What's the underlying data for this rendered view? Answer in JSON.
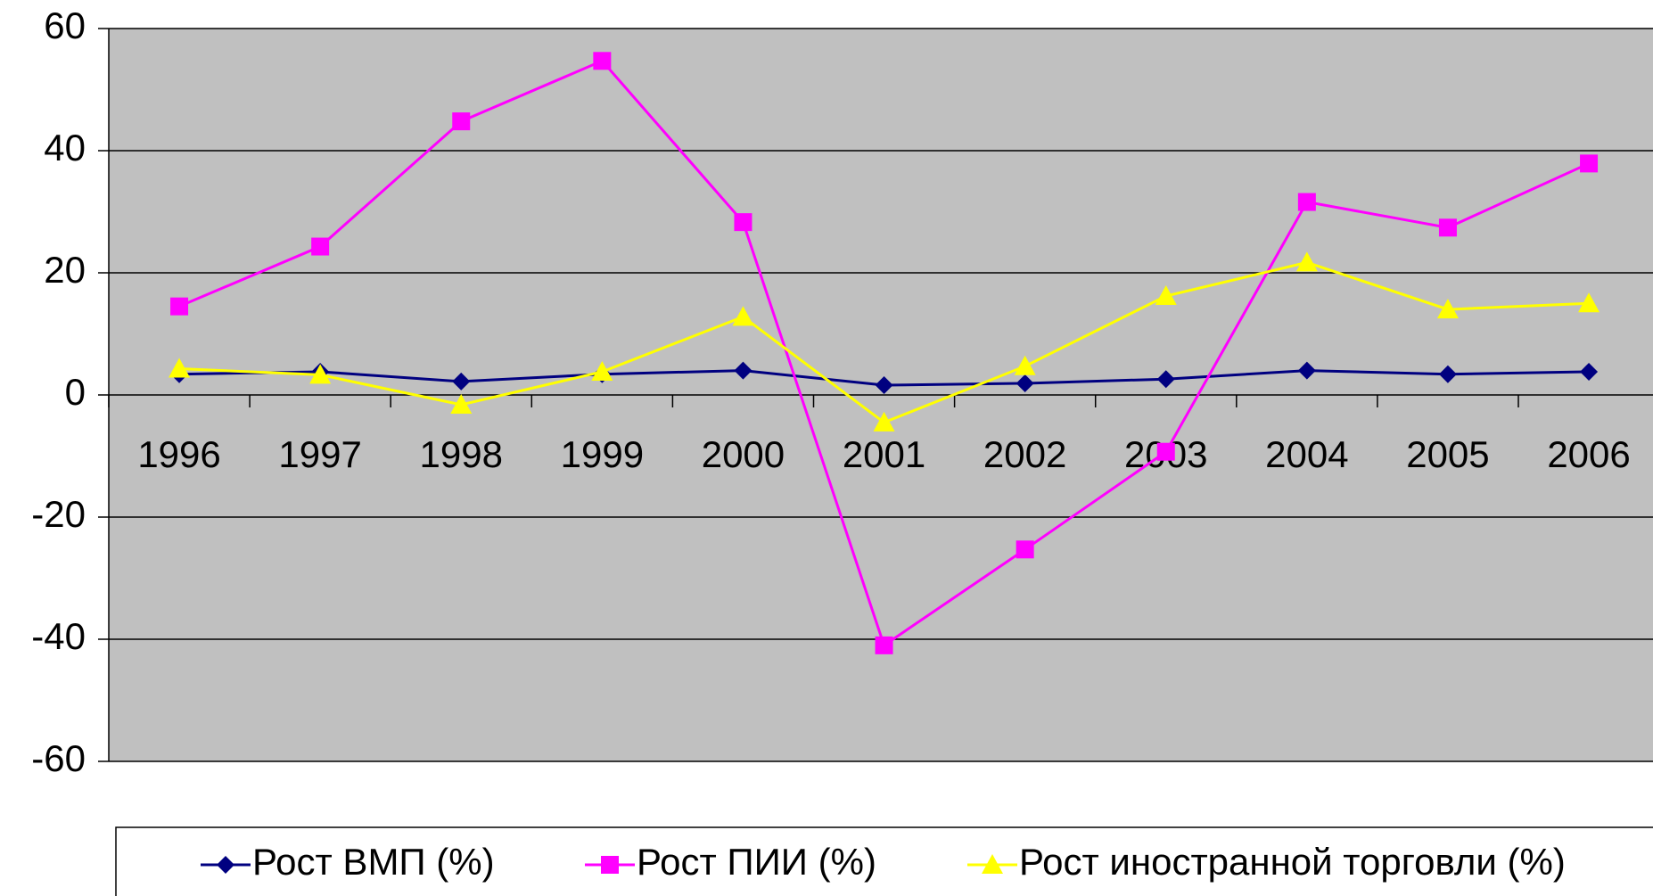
{
  "chart_data": {
    "type": "line",
    "categories": [
      "1996",
      "1997",
      "1998",
      "1999",
      "2000",
      "2001",
      "2002",
      "2003",
      "2004",
      "2005",
      "2006"
    ],
    "series": [
      {
        "name": "Рост ВМП (%)",
        "color": "#000080",
        "marker": "diamond",
        "values": [
          3.4,
          3.8,
          2.2,
          3.4,
          4.0,
          1.6,
          1.9,
          2.6,
          4.0,
          3.4,
          3.8
        ]
      },
      {
        "name": "Рост ПИИ (%)",
        "color": "#ff00ff",
        "marker": "square",
        "values": [
          14.5,
          24.3,
          44.8,
          54.7,
          28.3,
          -41.0,
          -25.3,
          -9.3,
          31.6,
          27.4,
          37.9
        ]
      },
      {
        "name": "Рост иностранной торговли (%)",
        "color": "#ffff00",
        "marker": "triangle",
        "values": [
          4.3,
          3.3,
          -1.6,
          3.8,
          12.8,
          -4.5,
          4.7,
          16.2,
          21.7,
          14.0,
          15.0
        ]
      }
    ],
    "ylim": [
      -60,
      60
    ],
    "yticks": [
      -60,
      -40,
      -20,
      0,
      20,
      40,
      60
    ],
    "grid": true,
    "legend": "bottom"
  }
}
